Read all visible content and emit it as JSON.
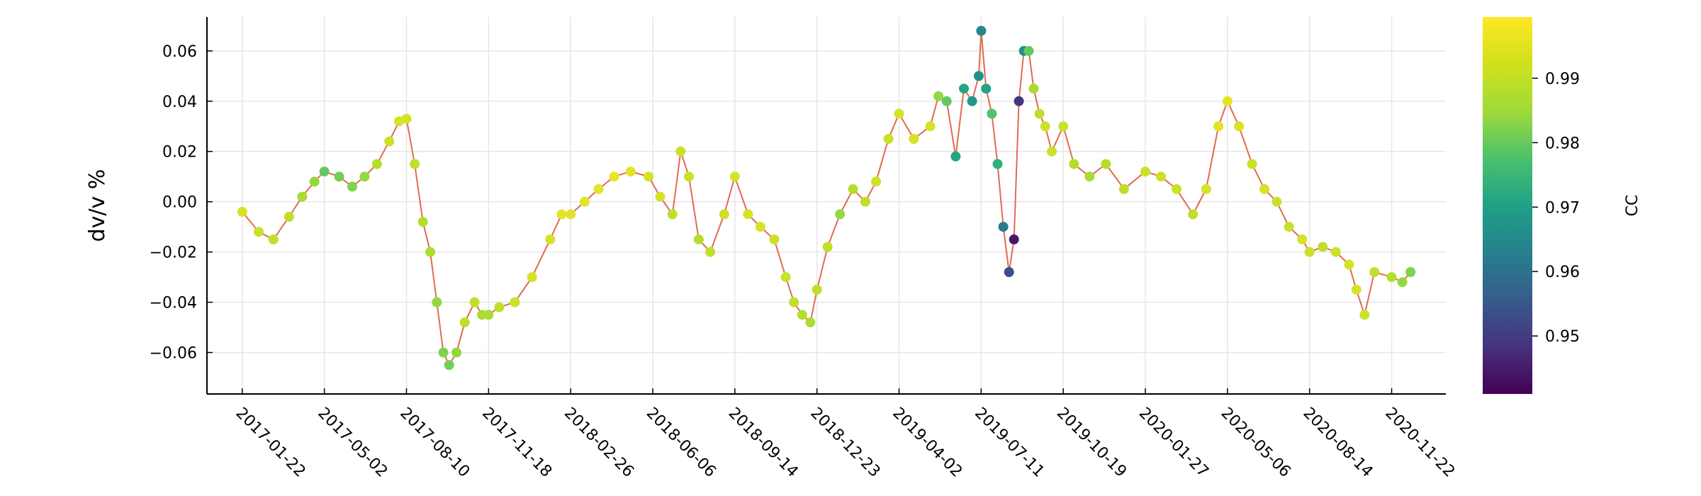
{
  "chart_data": {
    "type": "scatter",
    "title": "",
    "xlabel": "",
    "ylabel": "dv/v %",
    "xlim": [
      "2016-12-10",
      "2021-01-27"
    ],
    "ylim": [
      -0.0765,
      0.0735
    ],
    "grid": true,
    "legend": "none",
    "x_tick_labels": [
      "2017-01-22",
      "2017-05-02",
      "2017-08-10",
      "2017-11-18",
      "2018-02-26",
      "2018-06-06",
      "2018-09-14",
      "2018-12-23",
      "2019-04-02",
      "2019-07-11",
      "2019-10-19",
      "2020-01-27",
      "2020-05-06",
      "2020-08-14",
      "2020-11-22"
    ],
    "y_ticks": [
      -0.06,
      -0.04,
      -0.02,
      0.0,
      0.02,
      0.04,
      0.06
    ],
    "y_tick_labels": [
      "−0.06",
      "−0.04",
      "−0.02",
      "0.00",
      "0.02",
      "0.04",
      "0.06"
    ],
    "line_color": "#e26a4f",
    "colorbar": {
      "label": "CC",
      "colormap": "viridis",
      "range": [
        0.941,
        0.9995
      ],
      "ticks": [
        0.95,
        0.96,
        0.97,
        0.98,
        0.99
      ],
      "tick_labels": [
        "0.95",
        "0.96",
        "0.97",
        "0.98",
        "0.99"
      ]
    },
    "series": [
      {
        "x": [
          "2017-01-22",
          "2017-02-11",
          "2017-03-01",
          "2017-03-20",
          "2017-04-05",
          "2017-04-20",
          "2017-05-02",
          "2017-05-20",
          "2017-06-05",
          "2017-06-20",
          "2017-07-05",
          "2017-07-20",
          "2017-08-01",
          "2017-08-10",
          "2017-08-20",
          "2017-08-30",
          "2017-09-08",
          "2017-09-16",
          "2017-09-24",
          "2017-10-01",
          "2017-10-10",
          "2017-10-20",
          "2017-11-01",
          "2017-11-10",
          "2017-11-18",
          "2017-12-01",
          "2017-12-20",
          "2018-01-10",
          "2018-02-01",
          "2018-02-15",
          "2018-02-26",
          "2018-03-15",
          "2018-04-01",
          "2018-04-20",
          "2018-05-10",
          "2018-06-01",
          "2018-06-15",
          "2018-06-30",
          "2018-07-10",
          "2018-07-20",
          "2018-08-01",
          "2018-08-15",
          "2018-09-01",
          "2018-09-14",
          "2018-09-30",
          "2018-10-15",
          "2018-11-01",
          "2018-11-15",
          "2018-11-25",
          "2018-12-05",
          "2018-12-15",
          "2018-12-23",
          "2019-01-05",
          "2019-01-20",
          "2019-02-05",
          "2019-02-20",
          "2019-03-05",
          "2019-03-20",
          "2019-04-02",
          "2019-04-20",
          "2019-05-10",
          "2019-05-20",
          "2019-05-30",
          "2019-06-10",
          "2019-06-20",
          "2019-06-30",
          "2019-07-08",
          "2019-07-11",
          "2019-07-17",
          "2019-07-24",
          "2019-07-31",
          "2019-08-07",
          "2019-08-14",
          "2019-08-20",
          "2019-08-26",
          "2019-09-01",
          "2019-09-07",
          "2019-09-13",
          "2019-09-20",
          "2019-09-27",
          "2019-10-05",
          "2019-10-19",
          "2019-11-01",
          "2019-11-20",
          "2019-12-10",
          "2020-01-01",
          "2020-01-27",
          "2020-02-15",
          "2020-03-05",
          "2020-03-25",
          "2020-04-10",
          "2020-04-25",
          "2020-05-06",
          "2020-05-20",
          "2020-06-05",
          "2020-06-20",
          "2020-07-05",
          "2020-07-20",
          "2020-08-05",
          "2020-08-14",
          "2020-08-30",
          "2020-09-15",
          "2020-10-01",
          "2020-10-10",
          "2020-10-20",
          "2020-11-01",
          "2020-11-22",
          "2020-12-05",
          "2020-12-15"
        ],
        "y": [
          -0.004,
          -0.012,
          -0.015,
          -0.006,
          0.002,
          0.008,
          0.012,
          0.01,
          0.006,
          0.01,
          0.015,
          0.024,
          0.032,
          0.033,
          0.015,
          -0.008,
          -0.02,
          -0.04,
          -0.06,
          -0.065,
          -0.06,
          -0.048,
          -0.04,
          -0.045,
          -0.045,
          -0.042,
          -0.04,
          -0.03,
          -0.015,
          -0.005,
          -0.005,
          0.0,
          0.005,
          0.01,
          0.012,
          0.01,
          0.002,
          -0.005,
          0.02,
          0.01,
          -0.015,
          -0.02,
          -0.005,
          0.01,
          -0.005,
          -0.01,
          -0.015,
          -0.03,
          -0.04,
          -0.045,
          -0.048,
          -0.035,
          -0.018,
          -0.005,
          0.005,
          0.0,
          0.008,
          0.025,
          0.035,
          0.025,
          0.03,
          0.042,
          0.04,
          0.018,
          0.045,
          0.04,
          0.05,
          0.068,
          0.045,
          0.035,
          0.015,
          -0.01,
          -0.028,
          -0.015,
          0.04,
          0.06,
          0.06,
          0.045,
          0.035,
          0.03,
          0.02,
          0.03,
          0.015,
          0.01,
          0.015,
          0.005,
          0.012,
          0.01,
          0.005,
          -0.005,
          0.005,
          0.03,
          0.04,
          0.03,
          0.015,
          0.005,
          0.0,
          -0.01,
          -0.015,
          -0.02,
          -0.018,
          -0.02,
          -0.025,
          -0.035,
          -0.045,
          -0.028,
          -0.03,
          -0.032,
          -0.028
        ],
        "cc": [
          0.996,
          0.995,
          0.994,
          0.994,
          0.992,
          0.99,
          0.985,
          0.987,
          0.988,
          0.99,
          0.993,
          0.995,
          0.996,
          0.996,
          0.994,
          0.993,
          0.992,
          0.99,
          0.988,
          0.987,
          0.99,
          0.994,
          0.994,
          0.992,
          0.992,
          0.994,
          0.995,
          0.996,
          0.996,
          0.997,
          0.997,
          0.997,
          0.997,
          0.998,
          0.997,
          0.996,
          0.996,
          0.994,
          0.995,
          0.995,
          0.993,
          0.994,
          0.995,
          0.996,
          0.996,
          0.996,
          0.995,
          0.995,
          0.994,
          0.993,
          0.992,
          0.994,
          0.994,
          0.99,
          0.993,
          0.994,
          0.995,
          0.995,
          0.996,
          0.996,
          0.996,
          0.99,
          0.985,
          0.975,
          0.975,
          0.972,
          0.97,
          0.968,
          0.975,
          0.983,
          0.978,
          0.965,
          0.955,
          0.945,
          0.95,
          0.97,
          0.985,
          0.992,
          0.994,
          0.995,
          0.995,
          0.995,
          0.993,
          0.992,
          0.993,
          0.994,
          0.995,
          0.995,
          0.995,
          0.994,
          0.996,
          0.997,
          0.997,
          0.996,
          0.995,
          0.996,
          0.995,
          0.995,
          0.996,
          0.995,
          0.994,
          0.995,
          0.996,
          0.996,
          0.995,
          0.994,
          0.993,
          0.99,
          0.988
        ]
      }
    ]
  }
}
